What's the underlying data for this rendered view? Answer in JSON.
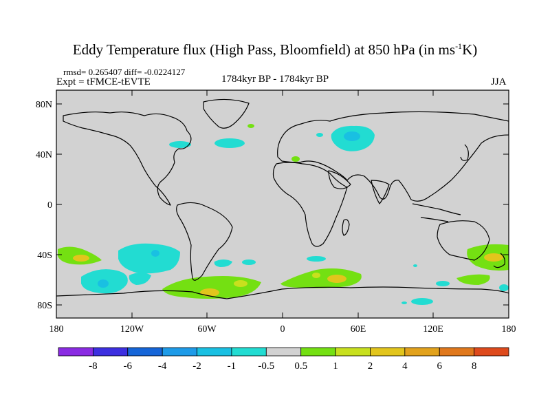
{
  "title": {
    "main": "Eddy Temperature flux (High Pass, Bloomfield) at 850 hPa (in ms",
    "superscript": "-1",
    "end": "K)"
  },
  "stats": "rmsd= 0.265407 diff= -0.0224127",
  "experiment": "Expt = tFMCE-tEVTE",
  "period": "1784kyr BP - 1784kyr BP",
  "season": "JJA",
  "axes": {
    "y_labels": [
      "80N",
      "40N",
      "0",
      "40S",
      "80S"
    ],
    "x_labels": [
      "180",
      "120W",
      "60W",
      "0",
      "60E",
      "120E",
      "180"
    ]
  },
  "colorbar": {
    "colors": [
      "#8a2be2",
      "#3d2fe0",
      "#1565d8",
      "#1e9be8",
      "#19c0e2",
      "#22dcd2",
      "#d2d2d2",
      "#74e012",
      "#c8e01e",
      "#e2c51c",
      "#e2a21c",
      "#e0781c",
      "#de4a1c"
    ],
    "labels": [
      "-8",
      "-6",
      "-4",
      "-2",
      "-1",
      "-0.5",
      "0.5",
      "1",
      "2",
      "4",
      "6",
      "8"
    ]
  },
  "colors": {
    "background_field": "#d2d2d2",
    "neg_small": "#22dcd2",
    "neg_medium": "#19c0e2",
    "pos_small": "#74e012",
    "pos_medium": "#c8e01e",
    "pos_large": "#e2c51c"
  }
}
